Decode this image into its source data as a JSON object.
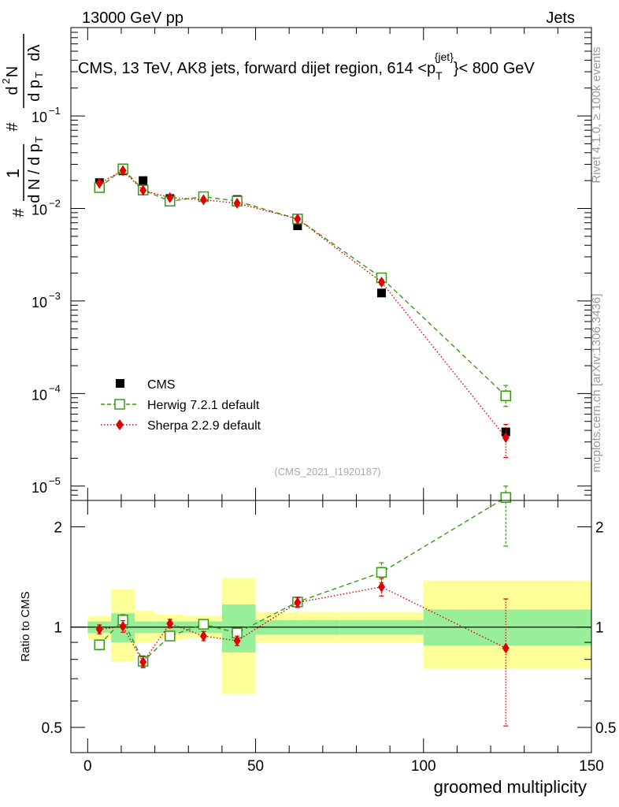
{
  "header": {
    "left": "13000 GeV pp",
    "right": "Jets"
  },
  "side": {
    "rivet": "Rivet 4.1.0, ≥ 100k events",
    "mcplots": "mcplots.cern.ch [arXiv:1306.3436]"
  },
  "chart_data": [
    {
      "type": "scatter",
      "title_main": "CMS, 13 TeV, AK8 jets, forward dijet region, 614 <p",
      "title_sub": "T",
      "title_sup": "{jet}",
      "title_tail": "}< 800 GeV",
      "ylabel": "1/(dN/dpT) d²N/(dpT dλ)",
      "yscale": "log",
      "ylim": [
        7e-06,
        0.9
      ],
      "xlim": [
        -5,
        150
      ],
      "ytick_mantissa": "10",
      "yticks": [
        {
          "exp": "−5",
          "value": 1e-05
        },
        {
          "exp": "−4",
          "value": 0.0001
        },
        {
          "exp": "−3",
          "value": 0.001
        },
        {
          "exp": "−2",
          "value": 0.01
        },
        {
          "exp": "−1",
          "value": 0.1
        }
      ],
      "watermark": "(CMS_2021_I1920187)",
      "legend_position": "bottom-left",
      "series": [
        {
          "name": "CMS",
          "color": "#000000",
          "marker": "square-filled",
          "x": [
            3.5,
            10.5,
            16.5,
            24.5,
            34.5,
            44.5,
            62.5,
            87.5,
            124.5
          ],
          "y": [
            0.019,
            0.0255,
            0.02,
            0.0128,
            0.0132,
            0.0125,
            0.0065,
            0.00122,
            3.85e-05
          ]
        },
        {
          "name": "Herwig 7.2.1 default",
          "color": "#3a9a12",
          "marker": "square-open",
          "line": "dashed",
          "x": [
            3.5,
            10.5,
            16.5,
            24.5,
            34.5,
            44.5,
            62.5,
            87.5,
            124.5
          ],
          "y": [
            0.0168,
            0.0268,
            0.0158,
            0.012,
            0.0134,
            0.012,
            0.0077,
            0.00178,
            9.45e-05
          ],
          "err_up": [
            0,
            0,
            0,
            0,
            0,
            0,
            0,
            0.00012,
            2.8e-05
          ],
          "err_dn": [
            0,
            0,
            0,
            0,
            0,
            0,
            0,
            0.00012,
            2.2e-05
          ]
        },
        {
          "name": "Sherpa 2.2.9 default",
          "color": "#e00000",
          "marker": "diamond",
          "line": "dotted",
          "x": [
            3.5,
            10.5,
            16.5,
            24.5,
            34.5,
            44.5,
            62.5,
            87.5,
            124.5
          ],
          "y": [
            0.0187,
            0.0256,
            0.0157,
            0.0131,
            0.0124,
            0.0114,
            0.0077,
            0.0016,
            3.34e-05
          ],
          "err_up": [
            0,
            0,
            0,
            0,
            0,
            0,
            0,
            0.0001,
            1.3e-05
          ],
          "err_dn": [
            0,
            0,
            0,
            0,
            0,
            0,
            0,
            0.0001,
            1.3e-05
          ]
        }
      ]
    },
    {
      "type": "scatter",
      "title": "",
      "xlabel": "groomed multiplicity",
      "ylabel": "Ratio to CMS",
      "yscale": "log",
      "ylim": [
        0.42,
        2.4
      ],
      "xlim": [
        -5,
        150
      ],
      "xticks": [
        "0",
        "50",
        "100",
        "150"
      ],
      "xtick_values": [
        0,
        50,
        100,
        150
      ],
      "yticks": [
        "0.5",
        "1",
        "2"
      ],
      "ytick_values": [
        0.5,
        1,
        2
      ],
      "reference_line": 1,
      "uncertainty_bands": {
        "bin_edges": [
          0,
          7,
          14,
          20,
          29,
          40,
          50,
          75,
          100,
          150
        ],
        "stat_lo": [
          0.96,
          0.9,
          0.96,
          0.96,
          0.96,
          0.84,
          0.95,
          0.95,
          0.88
        ],
        "stat_hi": [
          1.04,
          1.1,
          1.04,
          1.04,
          1.04,
          1.17,
          1.05,
          1.05,
          1.13
        ],
        "total_lo": [
          0.92,
          0.79,
          0.9,
          0.92,
          0.93,
          0.63,
          0.9,
          0.9,
          0.75
        ],
        "total_hi": [
          1.08,
          1.3,
          1.12,
          1.09,
          1.08,
          1.4,
          1.11,
          1.11,
          1.38
        ],
        "stat_color": "#99ee99",
        "total_color": "#ffff99"
      },
      "series": [
        {
          "name": "Herwig 7.2.1 default",
          "color": "#3a9a12",
          "marker": "square-open",
          "line": "dashed",
          "x": [
            3.5,
            10.5,
            16.5,
            24.5,
            34.5,
            44.5,
            62.5,
            87.5,
            124.5
          ],
          "y": [
            0.885,
            1.05,
            0.79,
            0.94,
            1.02,
            0.96,
            1.19,
            1.46,
            2.45
          ],
          "err_up": [
            0.03,
            0.04,
            0.03,
            0.03,
            0.03,
            0.03,
            0.04,
            0.1,
            0.2
          ],
          "err_dn": [
            0.03,
            0.04,
            0.03,
            0.03,
            0.03,
            0.03,
            0.04,
            0.1,
            0.7
          ]
        },
        {
          "name": "Sherpa 2.2.9 default",
          "color": "#e00000",
          "marker": "diamond",
          "line": "dotted",
          "x": [
            3.5,
            10.5,
            16.5,
            24.5,
            34.5,
            44.5,
            62.5,
            87.5,
            124.5
          ],
          "y": [
            0.985,
            1.005,
            0.785,
            1.025,
            0.94,
            0.91,
            1.185,
            1.32,
            0.865
          ],
          "err_up": [
            0.03,
            0.04,
            0.03,
            0.03,
            0.03,
            0.03,
            0.04,
            0.08,
            0.35
          ],
          "err_dn": [
            0.03,
            0.04,
            0.03,
            0.03,
            0.03,
            0.03,
            0.04,
            0.08,
            0.36
          ]
        }
      ]
    }
  ]
}
